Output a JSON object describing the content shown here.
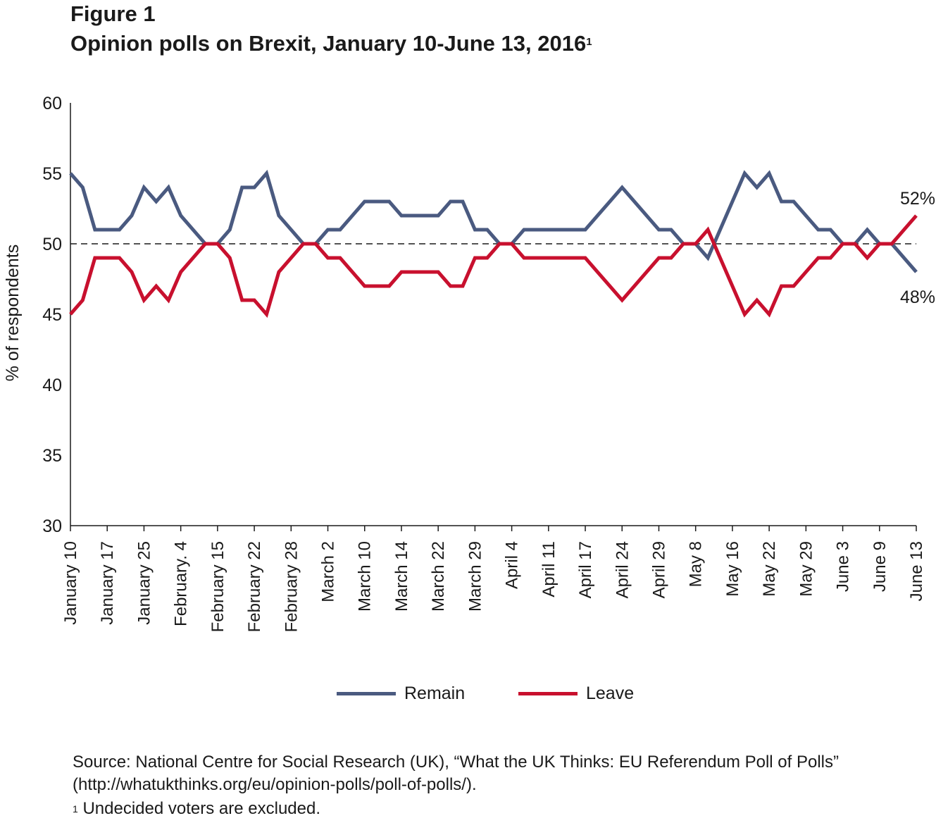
{
  "figure": {
    "label": "Figure 1",
    "title": "Opinion polls on Brexit, January 10-June 13, 2016",
    "title_note_marker": "1"
  },
  "chart_data": {
    "type": "line",
    "ylabel": "% of respondents",
    "ylim": [
      30,
      60
    ],
    "yticks": [
      30,
      35,
      40,
      45,
      50,
      55,
      60
    ],
    "reference_line": 50,
    "x_tick_labels": [
      "January 10",
      "January 17",
      "January 25",
      "February. 4",
      "February 15",
      "February 22",
      "February 28",
      "March 2",
      "March 10",
      "March 14",
      "March 22",
      "March 29",
      "April 4",
      "April 11",
      "April 17",
      "April 24",
      "April 29",
      "May 8",
      "May 16",
      "May 22",
      "May 29",
      "June 3",
      "June 9",
      "June 13"
    ],
    "series": [
      {
        "name": "Remain",
        "color": "#4a5a80",
        "values": [
          55,
          54,
          51,
          51,
          51,
          52,
          54,
          53,
          54,
          52,
          51,
          50,
          50,
          51,
          54,
          54,
          55,
          52,
          51,
          50,
          50,
          51,
          51,
          52,
          53,
          53,
          53,
          52,
          52,
          52,
          52,
          53,
          53,
          51,
          51,
          50,
          50,
          51,
          51,
          51,
          51,
          51,
          51,
          52,
          53,
          54,
          53,
          52,
          51,
          51,
          50,
          50,
          49,
          51,
          53,
          55,
          54,
          55,
          53,
          53,
          52,
          51,
          51,
          50,
          50,
          51,
          50,
          50,
          49,
          48
        ],
        "end_label": "48%"
      },
      {
        "name": "Leave",
        "color": "#c8102e",
        "values": [
          45,
          46,
          49,
          49,
          49,
          48,
          46,
          47,
          46,
          48,
          49,
          50,
          50,
          49,
          46,
          46,
          45,
          48,
          49,
          50,
          50,
          49,
          49,
          48,
          47,
          47,
          47,
          48,
          48,
          48,
          48,
          47,
          47,
          49,
          49,
          50,
          50,
          49,
          49,
          49,
          49,
          49,
          49,
          48,
          47,
          46,
          47,
          48,
          49,
          49,
          50,
          50,
          51,
          49,
          47,
          45,
          46,
          45,
          47,
          47,
          48,
          49,
          49,
          50,
          50,
          49,
          50,
          50,
          51,
          52
        ],
        "end_label": "52%"
      }
    ],
    "legend": [
      "Remain",
      "Leave"
    ],
    "legend_position": "bottom-center"
  },
  "source": "Source: National Centre for Social Research (UK), “What the UK Thinks: EU Referendum Poll of Polls” (http://whatukthinks.org/eu/opinion-polls/poll-of-polls/).",
  "footnote": {
    "marker": "1",
    "text": " Undecided voters are excluded."
  }
}
